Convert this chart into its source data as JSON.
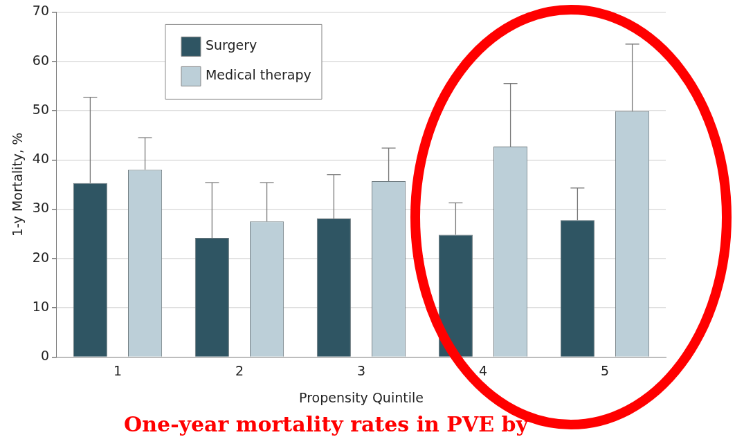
{
  "chart_data": {
    "type": "bar",
    "title": "One-year mortality rates in PVE by",
    "xlabel": "Propensity Quintile",
    "ylabel": "1-y Mortality, %",
    "categories": [
      "1",
      "2",
      "3",
      "4",
      "5"
    ],
    "series": [
      {
        "name": "Surgery",
        "color": "#2f5563",
        "values": [
          35.3,
          24.2,
          28.1,
          24.8,
          27.8
        ],
        "errors": [
          [
            35.3,
            52.7
          ],
          [
            24.2,
            35.4
          ],
          [
            28.1,
            37.0
          ],
          [
            24.8,
            31.3
          ],
          [
            27.8,
            34.3
          ]
        ]
      },
      {
        "name": "Medical therapy",
        "color": "#bccfd8",
        "values": [
          38.0,
          27.5,
          35.7,
          42.7,
          49.9
        ],
        "errors": [
          [
            38.0,
            44.5
          ],
          [
            27.5,
            35.4
          ],
          [
            35.7,
            42.4
          ],
          [
            42.7,
            55.5
          ],
          [
            49.9,
            63.5
          ]
        ]
      }
    ],
    "ylim": [
      0,
      70
    ],
    "yticks": [
      0,
      10,
      20,
      30,
      40,
      50,
      60,
      70
    ],
    "grid": "y",
    "legend": "top left"
  }
}
